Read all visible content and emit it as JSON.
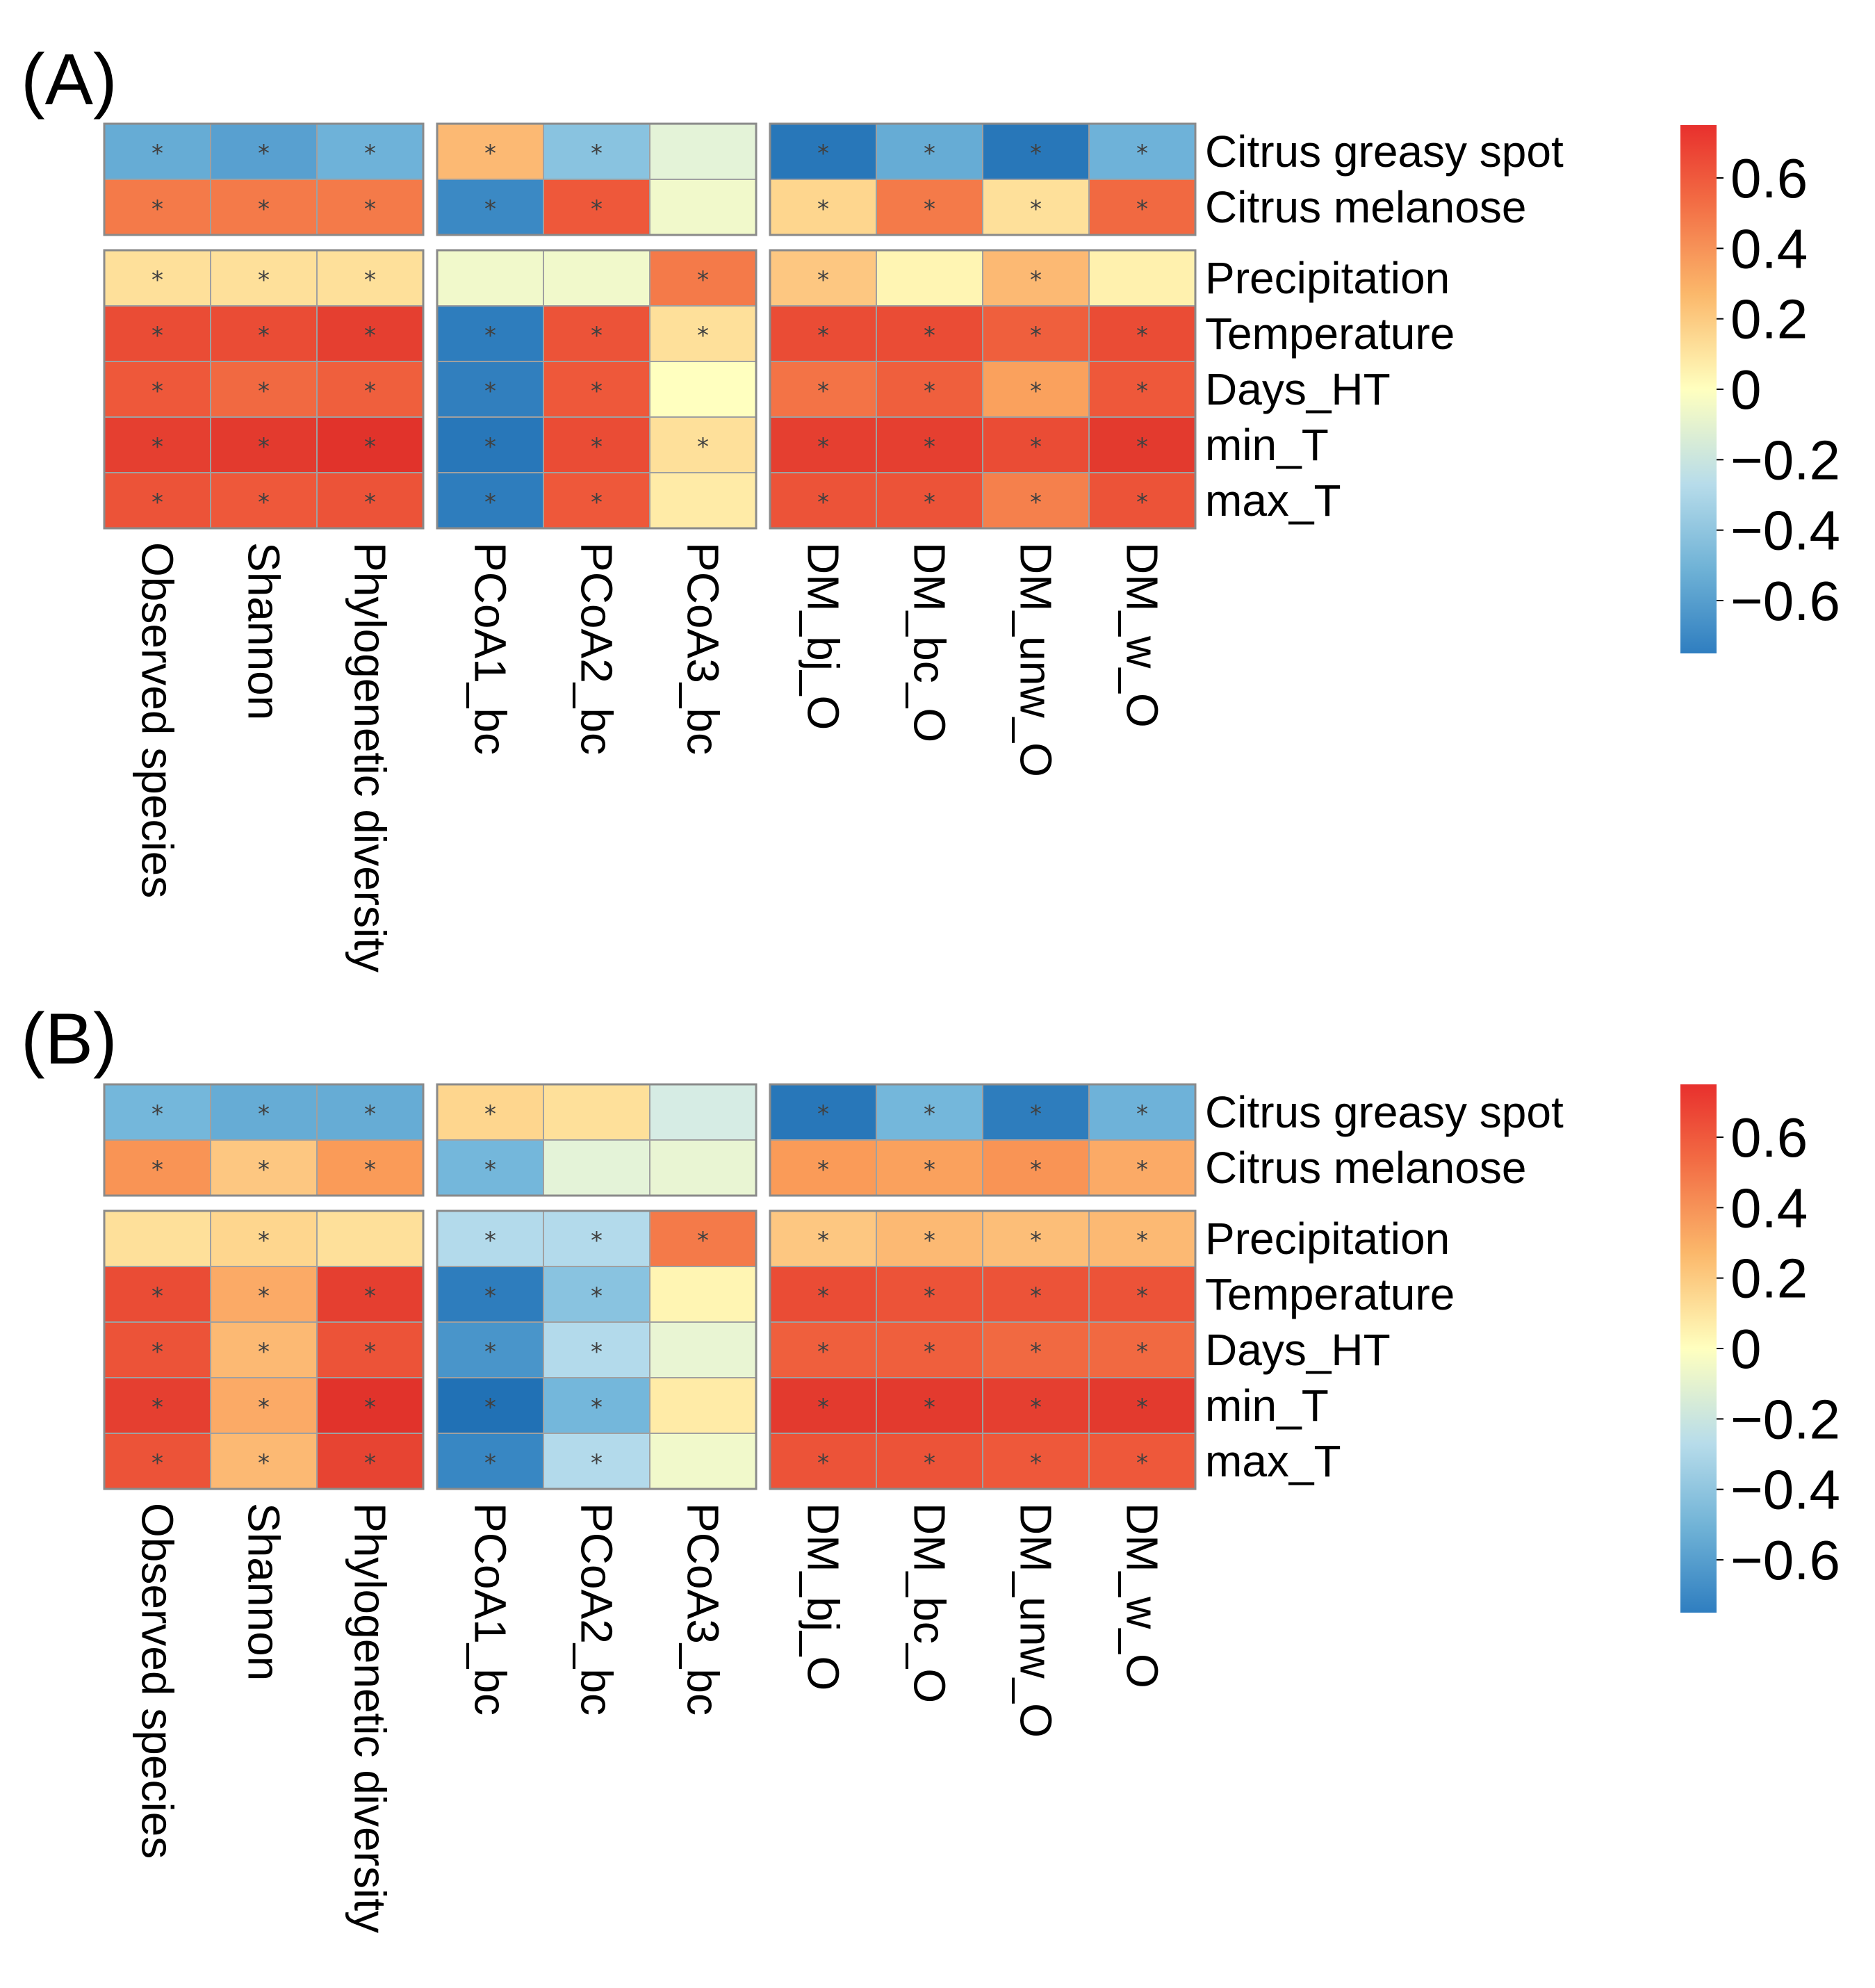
{
  "chart_data": [
    {
      "type": "heatmap",
      "panel_label": "(A)",
      "columns": [
        "Observed species",
        "Shannon",
        "Phylogenetic diversity",
        "PCoA1_bc",
        "PCoA2_bc",
        "PCoA3_bc",
        "DM_bj_O",
        "DM_bc_O",
        "DM_unw_O",
        "DM_w_O"
      ],
      "column_groups": [
        [
          0,
          1,
          2
        ],
        [
          3,
          4,
          5
        ],
        [
          6,
          7,
          8,
          9
        ]
      ],
      "rows": [
        "Citrus greasy spot",
        "Citrus melanose",
        "Precipitation",
        "Temperature",
        "Days_HT",
        "min_T",
        "max_T"
      ],
      "row_groups": [
        [
          0,
          1
        ],
        [
          2,
          3,
          4,
          5,
          6
        ]
      ],
      "values": [
        [
          -0.45,
          -0.5,
          -0.42,
          0.3,
          -0.35,
          -0.1,
          -0.75,
          -0.45,
          -0.75,
          -0.42
        ],
        [
          0.5,
          0.5,
          0.5,
          -0.6,
          0.6,
          -0.05,
          0.2,
          0.5,
          0.15,
          0.55
        ],
        [
          0.15,
          0.15,
          0.15,
          -0.05,
          -0.05,
          0.5,
          0.25,
          0.05,
          0.3,
          0.07
        ],
        [
          0.65,
          0.65,
          0.7,
          -0.7,
          0.62,
          0.15,
          0.65,
          0.65,
          0.58,
          0.65
        ],
        [
          0.6,
          0.55,
          0.58,
          -0.68,
          0.6,
          0.0,
          0.52,
          0.58,
          0.38,
          0.6
        ],
        [
          0.7,
          0.72,
          0.75,
          -0.75,
          0.65,
          0.15,
          0.7,
          0.7,
          0.65,
          0.72
        ],
        [
          0.62,
          0.6,
          0.62,
          -0.7,
          0.6,
          0.1,
          0.62,
          0.62,
          0.48,
          0.62
        ]
      ],
      "significant": [
        [
          true,
          true,
          true,
          true,
          true,
          false,
          true,
          true,
          true,
          true
        ],
        [
          true,
          true,
          true,
          true,
          true,
          false,
          true,
          true,
          true,
          true
        ],
        [
          true,
          true,
          true,
          false,
          false,
          true,
          true,
          false,
          true,
          false
        ],
        [
          true,
          true,
          true,
          true,
          true,
          true,
          true,
          true,
          true,
          true
        ],
        [
          true,
          true,
          true,
          true,
          true,
          false,
          true,
          true,
          true,
          true
        ],
        [
          true,
          true,
          true,
          true,
          true,
          true,
          true,
          true,
          true,
          true
        ],
        [
          true,
          true,
          true,
          true,
          true,
          false,
          true,
          true,
          true,
          true
        ]
      ],
      "significance_marker": "*",
      "legend": {
        "position": "right",
        "ticks": [
          0.6,
          0.4,
          0.2,
          0,
          -0.2,
          -0.4,
          -0.6
        ],
        "tick_labels": [
          "0.6",
          "0.4",
          "0.2",
          "0",
          "−0.2",
          "−0.4",
          "−0.6"
        ],
        "range": [
          -0.75,
          0.75
        ]
      }
    },
    {
      "type": "heatmap",
      "panel_label": "(B)",
      "columns": [
        "Observed species",
        "Shannon",
        "Phylogenetic diversity",
        "PCoA1_bc",
        "PCoA2_bc",
        "PCoA3_bc",
        "DM_bj_O",
        "DM_bc_O",
        "DM_unw_O",
        "DM_w_O"
      ],
      "column_groups": [
        [
          0,
          1,
          2
        ],
        [
          3,
          4,
          5
        ],
        [
          6,
          7,
          8,
          9
        ]
      ],
      "rows": [
        "Citrus greasy spot",
        "Citrus melanose",
        "Precipitation",
        "Temperature",
        "Days_HT",
        "min_T",
        "max_T"
      ],
      "row_groups": [
        [
          0,
          1
        ],
        [
          2,
          3,
          4,
          5,
          6
        ]
      ],
      "values": [
        [
          -0.4,
          -0.45,
          -0.45,
          0.2,
          0.15,
          -0.15,
          -0.75,
          -0.4,
          -0.7,
          -0.42
        ],
        [
          0.42,
          0.25,
          0.4,
          -0.4,
          -0.1,
          -0.08,
          0.4,
          0.38,
          0.42,
          0.35
        ],
        [
          0.15,
          0.2,
          0.15,
          -0.25,
          -0.25,
          0.5,
          0.25,
          0.3,
          0.28,
          0.3
        ],
        [
          0.65,
          0.35,
          0.7,
          -0.7,
          -0.35,
          0.05,
          0.65,
          0.62,
          0.62,
          0.62
        ],
        [
          0.62,
          0.3,
          0.62,
          -0.55,
          -0.25,
          -0.08,
          0.58,
          0.58,
          0.55,
          0.55
        ],
        [
          0.7,
          0.35,
          0.75,
          -0.8,
          -0.4,
          0.1,
          0.72,
          0.72,
          0.7,
          0.72
        ],
        [
          0.62,
          0.3,
          0.68,
          -0.62,
          -0.25,
          -0.05,
          0.62,
          0.62,
          0.6,
          0.6
        ]
      ],
      "significant": [
        [
          true,
          true,
          true,
          true,
          false,
          false,
          true,
          true,
          true,
          true
        ],
        [
          true,
          true,
          true,
          true,
          false,
          false,
          true,
          true,
          true,
          true
        ],
        [
          false,
          true,
          false,
          true,
          true,
          true,
          true,
          true,
          true,
          true
        ],
        [
          true,
          true,
          true,
          true,
          true,
          false,
          true,
          true,
          true,
          true
        ],
        [
          true,
          true,
          true,
          true,
          true,
          false,
          true,
          true,
          true,
          true
        ],
        [
          true,
          true,
          true,
          true,
          true,
          false,
          true,
          true,
          true,
          true
        ],
        [
          true,
          true,
          true,
          true,
          true,
          false,
          true,
          true,
          true,
          true
        ]
      ],
      "significance_marker": "*",
      "legend": {
        "position": "right",
        "ticks": [
          0.6,
          0.4,
          0.2,
          0,
          -0.2,
          -0.4,
          -0.6
        ],
        "tick_labels": [
          "0.6",
          "0.4",
          "0.2",
          "0",
          "−0.2",
          "−0.4",
          "−0.6"
        ],
        "range": [
          -0.75,
          0.75
        ]
      }
    }
  ]
}
